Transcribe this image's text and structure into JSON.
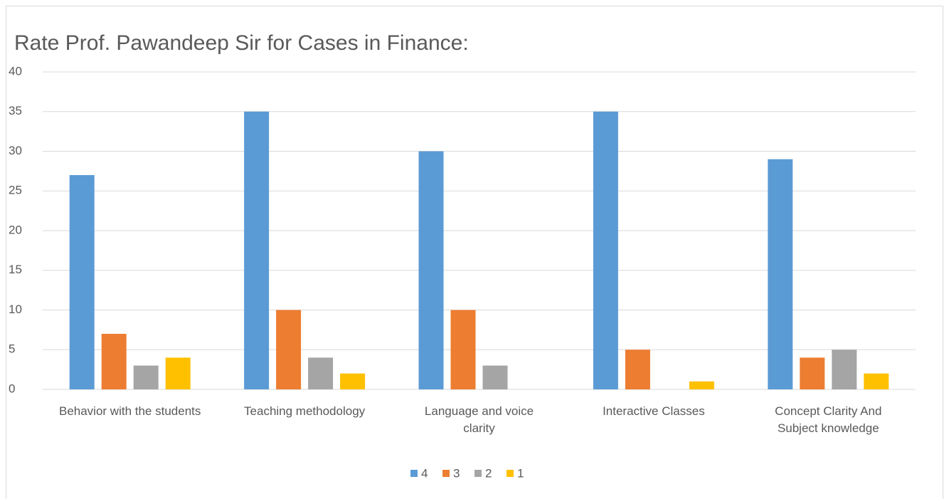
{
  "chart_data": {
    "type": "bar",
    "title": "Rate Prof. Pawandeep Sir for Cases in Finance:",
    "categories": [
      "Behavior with the students",
      "Teaching methodology",
      "Language and voice clarity",
      "Interactive Classes",
      "Concept Clarity And Subject knowledge"
    ],
    "series": [
      {
        "name": "4",
        "color": "#5b9bd5",
        "values": [
          27,
          35,
          30,
          35,
          29
        ]
      },
      {
        "name": "3",
        "color": "#ed7d31",
        "values": [
          7,
          10,
          10,
          5,
          4
        ]
      },
      {
        "name": "2",
        "color": "#a5a5a5",
        "values": [
          3,
          4,
          3,
          0,
          5
        ]
      },
      {
        "name": "1",
        "color": "#ffc000",
        "values": [
          4,
          2,
          0,
          1,
          2
        ]
      }
    ],
    "ylim": [
      0,
      40
    ],
    "yticks": [
      0,
      5,
      10,
      15,
      20,
      25,
      30,
      35,
      40
    ],
    "grid": true,
    "legend": "bottom"
  }
}
